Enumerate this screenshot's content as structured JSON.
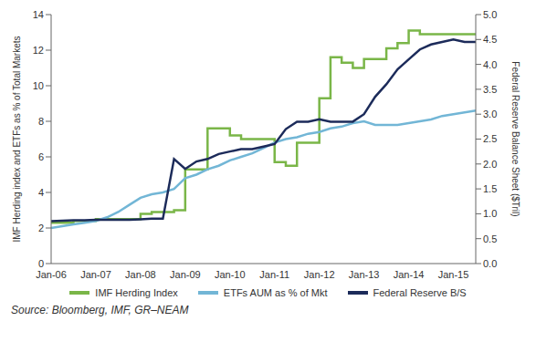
{
  "chart_data": {
    "type": "line",
    "y_label": "IMF Herding index and ETFs as % of Total Markets",
    "y2_label": "Federal Reserve Balance Sheet ($Tril)",
    "source": "Source: Bloomberg, IMF, GR–NEAM",
    "categories": [
      "Jan-06",
      null,
      null,
      null,
      "Jan-07",
      null,
      null,
      null,
      "Jan-08",
      null,
      null,
      null,
      "Jan-09",
      null,
      null,
      null,
      "Jan-10",
      null,
      null,
      null,
      "Jan-11",
      null,
      null,
      null,
      "Jan-12",
      null,
      null,
      null,
      "Jan-13",
      null,
      null,
      null,
      "Jan-14",
      null,
      null,
      null,
      "Jan-15",
      null,
      null
    ],
    "series": [
      {
        "name": "IMF Herding Index",
        "color": "#7ab648",
        "axis": "y",
        "line_style": "step",
        "values": [
          2.3,
          2.3,
          2.4,
          2.4,
          2.5,
          2.5,
          2.5,
          2.5,
          2.8,
          2.9,
          2.9,
          3.0,
          5.3,
          5.3,
          7.6,
          7.6,
          7.2,
          7.0,
          7.0,
          7.0,
          5.7,
          5.5,
          6.8,
          6.8,
          9.3,
          11.6,
          11.3,
          11.0,
          11.5,
          11.5,
          12.1,
          12.4,
          13.1,
          12.9,
          12.9,
          12.9,
          12.9,
          12.9,
          12.9
        ]
      },
      {
        "name": "ETFs AUM as % of Mkt",
        "color": "#72b6d6",
        "axis": "y",
        "line_style": "solid",
        "values": [
          2.0,
          2.1,
          2.2,
          2.3,
          2.4,
          2.6,
          2.9,
          3.3,
          3.7,
          3.9,
          4.0,
          4.2,
          4.8,
          5.0,
          5.3,
          5.5,
          5.8,
          6.0,
          6.2,
          6.5,
          6.8,
          7.0,
          7.1,
          7.3,
          7.4,
          7.6,
          7.7,
          7.9,
          8.0,
          7.8,
          7.8,
          7.8,
          7.9,
          8.0,
          8.1,
          8.3,
          8.4,
          8.5,
          8.6
        ]
      },
      {
        "name": "Federal Reserve B/S",
        "color": "#1c2b5a",
        "axis": "y2",
        "line_style": "solid",
        "values": [
          0.85,
          0.86,
          0.87,
          0.87,
          0.88,
          0.88,
          0.88,
          0.88,
          0.89,
          0.9,
          0.9,
          2.1,
          1.9,
          2.05,
          2.1,
          2.2,
          2.25,
          2.3,
          2.3,
          2.35,
          2.4,
          2.7,
          2.85,
          2.85,
          2.9,
          2.85,
          2.85,
          2.85,
          3.0,
          3.35,
          3.6,
          3.9,
          4.1,
          4.3,
          4.4,
          4.45,
          4.5,
          4.45,
          4.45
        ]
      }
    ],
    "ylim": [
      0,
      14
    ],
    "yticks": [
      0,
      2,
      4,
      6,
      8,
      10,
      12,
      14
    ],
    "y2lim": [
      0,
      5
    ],
    "y2ticks": [
      {
        "value": 0,
        "label": "0.0"
      },
      0.5,
      {
        "value": 1,
        "label": "1.0"
      },
      1.5,
      {
        "value": 2,
        "label": "2.0"
      },
      2.5,
      {
        "value": 3,
        "label": "3.0"
      },
      3.5,
      {
        "value": 4,
        "label": "4.0"
      },
      4.5,
      {
        "value": 5,
        "label": "5.0"
      }
    ],
    "grid": false,
    "legend": "bottom"
  }
}
